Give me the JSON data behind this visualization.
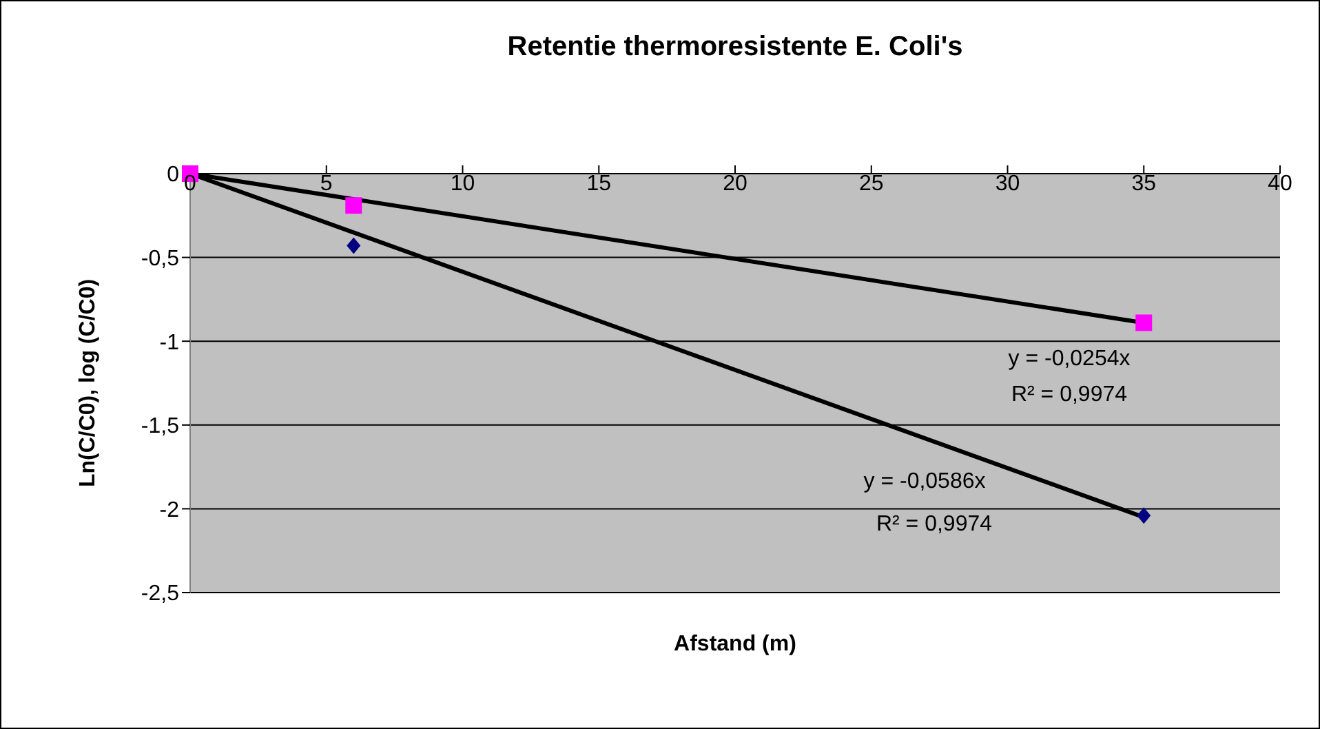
{
  "chart_data": {
    "type": "scatter",
    "title": "Retentie thermoresistente E. Coli's",
    "xlabel": "Afstand (m)",
    "ylabel": "Ln(C/C0),  log (C/C0)",
    "series": [
      {
        "marker": "diamond",
        "color": "#000080",
        "x": [
          6,
          35
        ],
        "values": [
          -0.43,
          -2.04
        ]
      },
      {
        "marker": "square",
        "color": "#ff00ff",
        "x": [
          0,
          6,
          35
        ],
        "values": [
          0,
          -0.19,
          -0.89
        ]
      },
      {
        "type": "line",
        "color": "#000000",
        "x": [
          0,
          35
        ],
        "values": [
          0,
          -2.05
        ]
      },
      {
        "type": "line",
        "color": "#000000",
        "x": [
          0,
          35
        ],
        "values": [
          0,
          -0.89
        ]
      }
    ],
    "annotations": [
      "y = -0,0254x",
      "R² = 0,9974",
      "y = -0,0586x",
      "R² = 0,9974"
    ],
    "xlim": [
      0,
      40
    ],
    "xticks": [
      0,
      5,
      10,
      15,
      20,
      25,
      30,
      35,
      40
    ],
    "ylim": [
      -2.5,
      0
    ],
    "yticks": [
      {
        "value": -2.5,
        "label": "-2,5"
      },
      {
        "value": -2,
        "label": "-2"
      },
      {
        "value": -1.5,
        "label": "-1,5"
      },
      {
        "value": -1,
        "label": "-1"
      },
      {
        "value": -0.5,
        "label": "-0,5"
      },
      {
        "value": 0,
        "label": "0"
      }
    ],
    "grid": "y"
  }
}
